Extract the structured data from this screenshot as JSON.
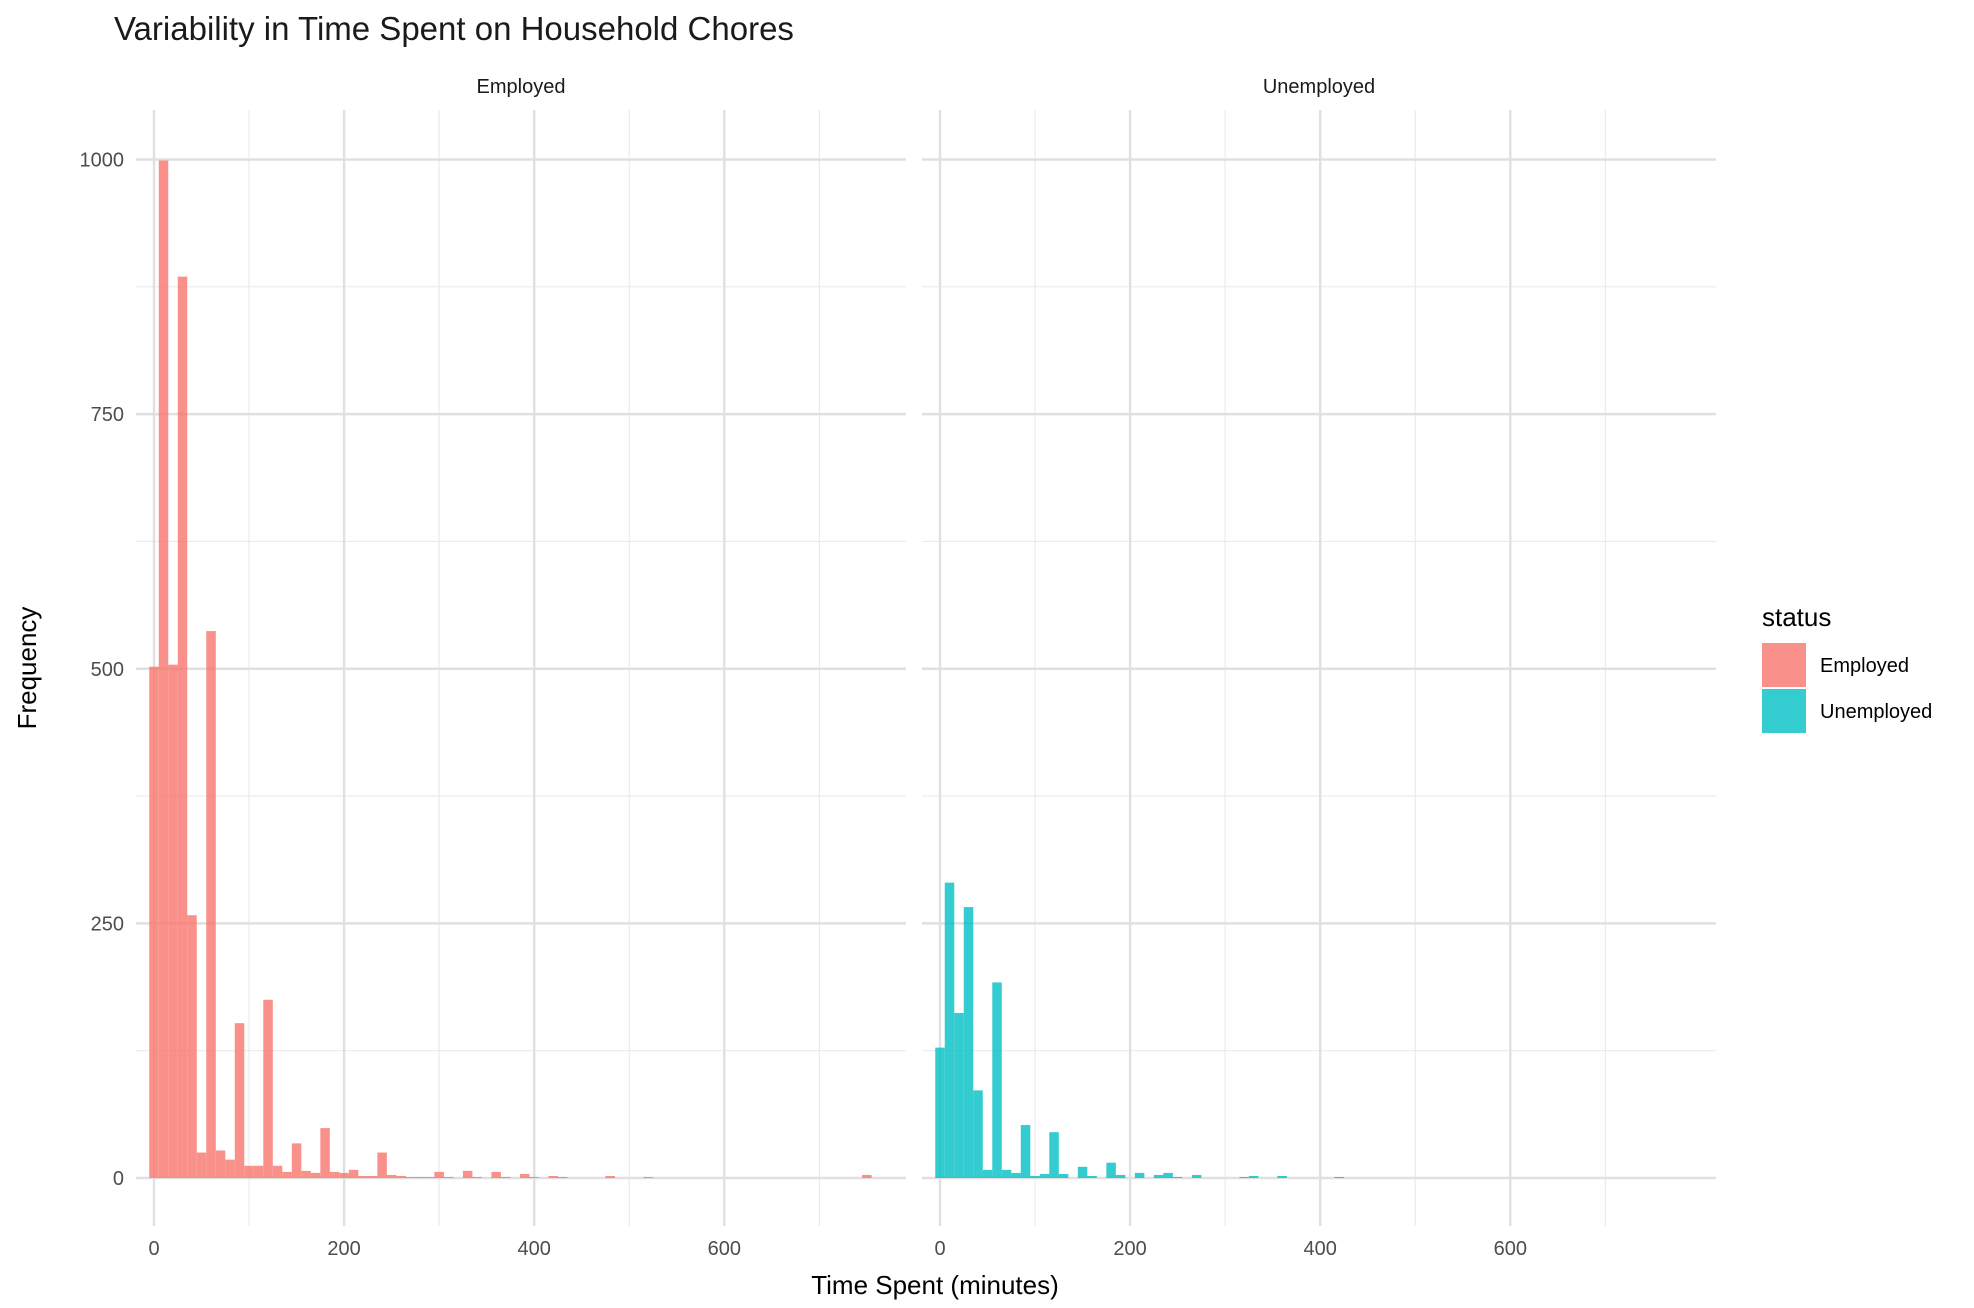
{
  "chart_data": {
    "type": "bar",
    "title": "Variability in Time Spent on Household Chores",
    "xlabel": "Time Spent (minutes)",
    "ylabel": "Frequency",
    "xlim": [
      -20,
      785
    ],
    "ylim": [
      -60,
      1045
    ],
    "x_ticks": [
      0,
      200,
      400,
      600
    ],
    "y_ticks": [
      0,
      250,
      500,
      750,
      1000
    ],
    "bin_width": 10,
    "grid": true,
    "legend": {
      "title": "status",
      "position": "right",
      "entries": [
        {
          "label": "Employed",
          "color": "#F8766D"
        },
        {
          "label": "Unemployed",
          "color": "#00BFC4"
        }
      ]
    },
    "panels": [
      {
        "label": "Employed",
        "color": "#F8766D",
        "bins": [
          {
            "x": 0,
            "count": 502
          },
          {
            "x": 10,
            "count": 999
          },
          {
            "x": 20,
            "count": 504
          },
          {
            "x": 30,
            "count": 885
          },
          {
            "x": 40,
            "count": 258
          },
          {
            "x": 50,
            "count": 25
          },
          {
            "x": 60,
            "count": 537
          },
          {
            "x": 70,
            "count": 27
          },
          {
            "x": 80,
            "count": 18
          },
          {
            "x": 90,
            "count": 152
          },
          {
            "x": 100,
            "count": 12
          },
          {
            "x": 110,
            "count": 12
          },
          {
            "x": 120,
            "count": 175
          },
          {
            "x": 130,
            "count": 12
          },
          {
            "x": 140,
            "count": 6
          },
          {
            "x": 150,
            "count": 34
          },
          {
            "x": 160,
            "count": 7
          },
          {
            "x": 170,
            "count": 5
          },
          {
            "x": 180,
            "count": 49
          },
          {
            "x": 190,
            "count": 6
          },
          {
            "x": 200,
            "count": 5
          },
          {
            "x": 210,
            "count": 8
          },
          {
            "x": 220,
            "count": 2
          },
          {
            "x": 230,
            "count": 2
          },
          {
            "x": 240,
            "count": 25
          },
          {
            "x": 250,
            "count": 3
          },
          {
            "x": 260,
            "count": 2
          },
          {
            "x": 270,
            "count": 1
          },
          {
            "x": 280,
            "count": 1
          },
          {
            "x": 290,
            "count": 1
          },
          {
            "x": 300,
            "count": 6
          },
          {
            "x": 310,
            "count": 1
          },
          {
            "x": 330,
            "count": 7
          },
          {
            "x": 340,
            "count": 1
          },
          {
            "x": 360,
            "count": 6
          },
          {
            "x": 370,
            "count": 1
          },
          {
            "x": 390,
            "count": 4
          },
          {
            "x": 400,
            "count": 1
          },
          {
            "x": 420,
            "count": 2
          },
          {
            "x": 430,
            "count": 1
          },
          {
            "x": 480,
            "count": 2
          },
          {
            "x": 520,
            "count": 1
          },
          {
            "x": 750,
            "count": 3
          }
        ]
      },
      {
        "label": "Unemployed",
        "color": "#00BFC4",
        "bins": [
          {
            "x": 0,
            "count": 128
          },
          {
            "x": 10,
            "count": 290
          },
          {
            "x": 20,
            "count": 162
          },
          {
            "x": 30,
            "count": 266
          },
          {
            "x": 40,
            "count": 86
          },
          {
            "x": 50,
            "count": 8
          },
          {
            "x": 60,
            "count": 192
          },
          {
            "x": 70,
            "count": 8
          },
          {
            "x": 80,
            "count": 5
          },
          {
            "x": 90,
            "count": 52
          },
          {
            "x": 100,
            "count": 2
          },
          {
            "x": 110,
            "count": 4
          },
          {
            "x": 120,
            "count": 45
          },
          {
            "x": 130,
            "count": 4
          },
          {
            "x": 150,
            "count": 11
          },
          {
            "x": 160,
            "count": 2
          },
          {
            "x": 180,
            "count": 15
          },
          {
            "x": 190,
            "count": 3
          },
          {
            "x": 210,
            "count": 5
          },
          {
            "x": 230,
            "count": 3
          },
          {
            "x": 240,
            "count": 5
          },
          {
            "x": 250,
            "count": 1
          },
          {
            "x": 270,
            "count": 3
          },
          {
            "x": 320,
            "count": 1
          },
          {
            "x": 330,
            "count": 2
          },
          {
            "x": 360,
            "count": 2
          },
          {
            "x": 420,
            "count": 1
          }
        ]
      }
    ]
  }
}
